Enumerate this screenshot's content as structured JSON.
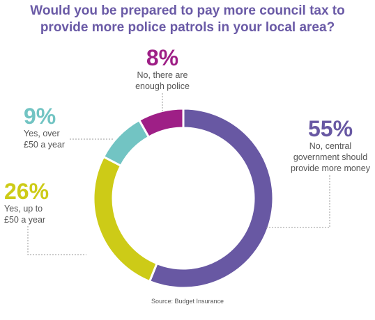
{
  "title": {
    "line1": "Would you be prepared to pay more council tax to",
    "line2": "provide more police patrols in your local area?"
  },
  "source": "Source: Budget Insurance",
  "chart_data": {
    "type": "pie",
    "donut": true,
    "title": "Would you be prepared to pay more council tax to provide more police patrols in your local area?",
    "slices": [
      {
        "pct_label": "55%",
        "value": 55,
        "line1": "No, central",
        "line2": "government should",
        "line3": "provide more money",
        "color": "#6858a3"
      },
      {
        "pct_label": "26%",
        "value": 26,
        "line1": "Yes, up to",
        "line2": "£50 a year",
        "color": "#cdcb17"
      },
      {
        "pct_label": "9%",
        "value": 9,
        "line1": "Yes, over",
        "line2": "£50 a year",
        "color": "#72c4c3"
      },
      {
        "pct_label": "8%",
        "value": 8,
        "line1": "No, there are",
        "line2": "enough police",
        "color": "#9e1f86"
      }
    ]
  }
}
